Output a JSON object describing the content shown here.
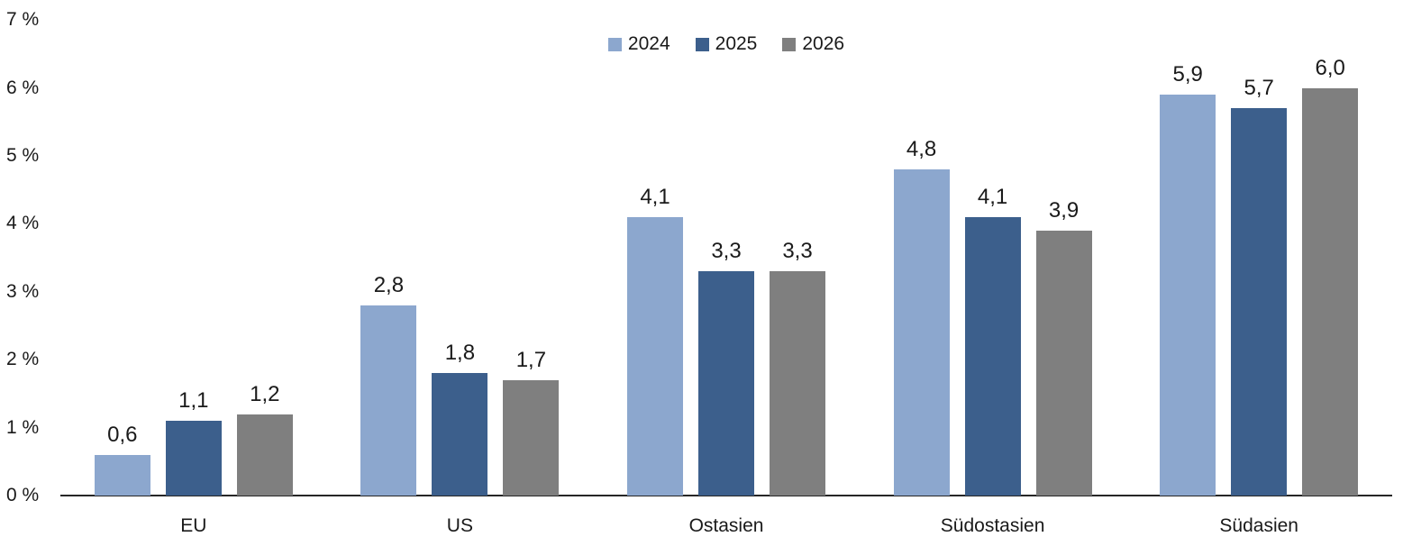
{
  "chart_data": {
    "type": "bar",
    "title": "",
    "categories": [
      "EU",
      "US",
      "Ostasien",
      "Südostasien",
      "Südasien"
    ],
    "series": [
      {
        "name": "2024",
        "color": "#8CA7CE",
        "values": [
          0.6,
          2.8,
          4.1,
          4.8,
          5.9
        ]
      },
      {
        "name": "2025",
        "color": "#3C5F8C",
        "values": [
          1.1,
          1.8,
          3.3,
          4.1,
          5.7
        ]
      },
      {
        "name": "2026",
        "color": "#7F7F7F",
        "values": [
          1.2,
          1.7,
          3.3,
          3.9,
          6.0
        ]
      }
    ],
    "data_labels": [
      [
        "0,6",
        "2,8",
        "4,1",
        "4,8",
        "5,9"
      ],
      [
        "1,1",
        "1,8",
        "3,3",
        "4,1",
        "5,7"
      ],
      [
        "1,2",
        "1,7",
        "3,3",
        "3,9",
        "6,0"
      ]
    ],
    "y_axis": {
      "min": 0,
      "max": 7,
      "step": 1,
      "tick_labels": [
        "0 %",
        "1 %",
        "2 %",
        "3 %",
        "4 %",
        "5 %",
        "6 %",
        "7 %"
      ]
    },
    "xlabel": "",
    "ylabel": "",
    "legend_position": "top-center",
    "grid": false,
    "decimal_separator": ","
  },
  "colors": {
    "background": "#ffffff",
    "axis_line": "#262626",
    "text": "#1a1a1a"
  }
}
